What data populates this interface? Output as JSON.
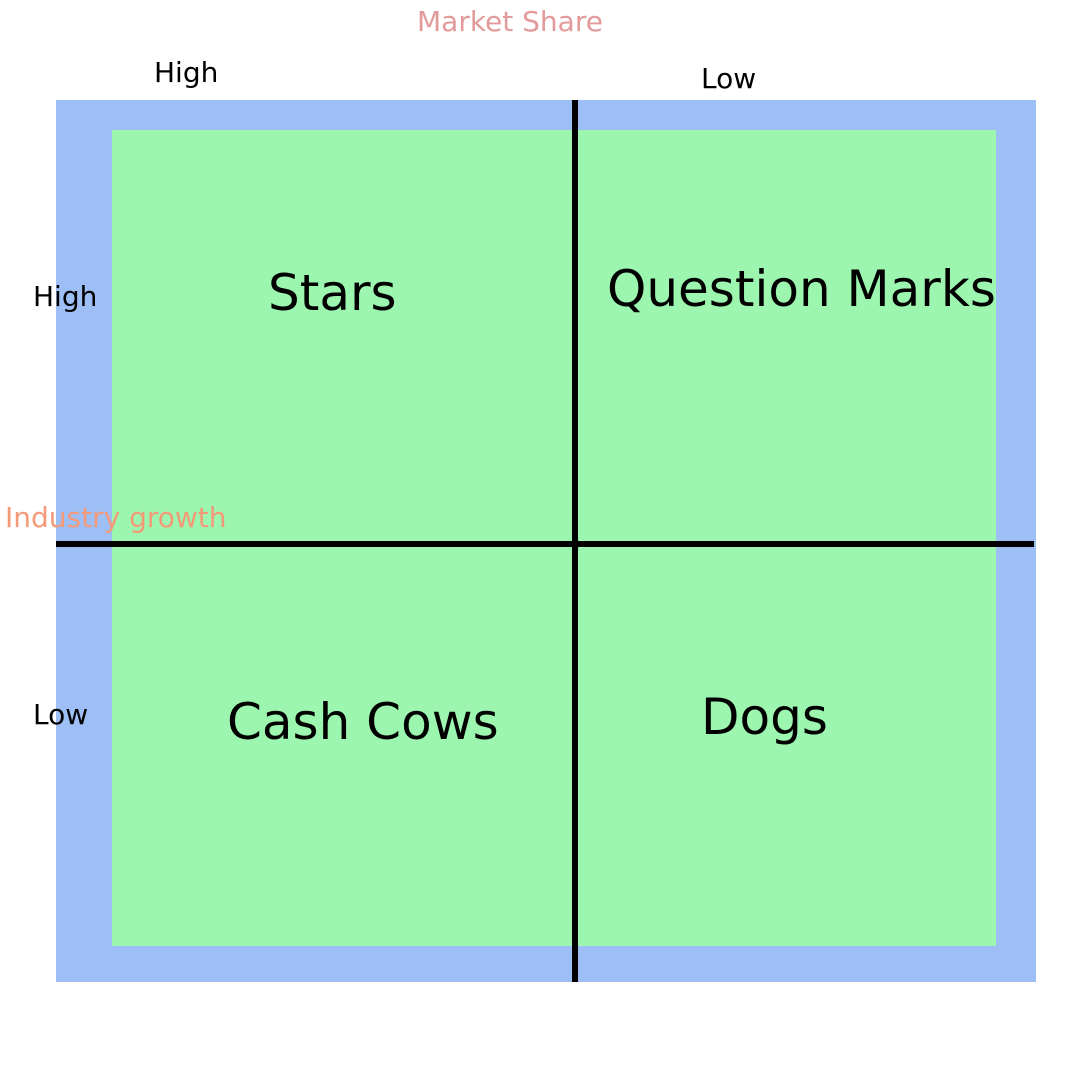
{
  "colors": {
    "outer_frame": "#9dbff5",
    "inner_field": "#9cf6b0",
    "divider": "#000000",
    "title_color": "#e39a9a",
    "row_axis_color": "#f59a78"
  },
  "header": {
    "title": "Market Share",
    "col_high": "High",
    "col_low": "Low"
  },
  "side": {
    "axis_label": "Industry growth",
    "row_high": "High",
    "row_low": "Low"
  },
  "quadrants": {
    "top_left": "Stars",
    "top_right": "Question Marks",
    "bottom_left": "Cash Cows",
    "bottom_right": "Dogs"
  }
}
